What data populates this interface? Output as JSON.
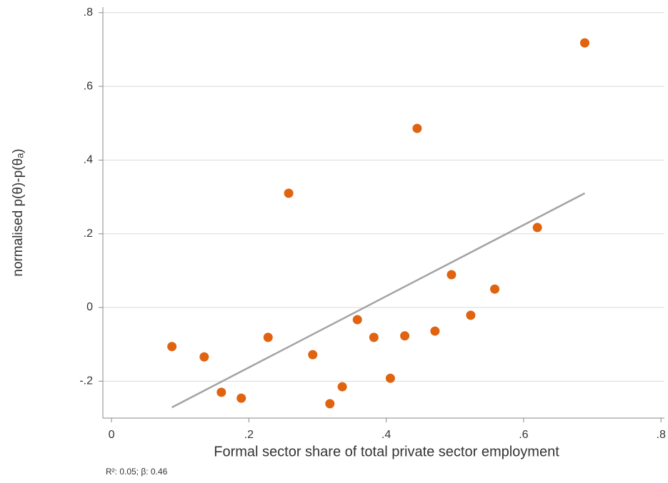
{
  "chart_data": {
    "type": "scatter",
    "xlabel": "Formal sector share of total private sector employment",
    "ylabel": "normalised p(θ)-p(θₐ)",
    "note": "R²: 0.05; β: 0.46",
    "x": [
      0.088,
      0.135,
      0.16,
      0.189,
      0.228,
      0.258,
      0.293,
      0.318,
      0.336,
      0.358,
      0.382,
      0.406,
      0.427,
      0.445,
      0.471,
      0.495,
      0.523,
      0.558,
      0.62,
      0.689
    ],
    "values": [
      -0.106,
      -0.134,
      -0.23,
      -0.246,
      -0.081,
      0.31,
      -0.128,
      -0.261,
      -0.215,
      -0.033,
      -0.081,
      -0.192,
      -0.077,
      0.486,
      -0.064,
      0.089,
      -0.021,
      0.05,
      0.217,
      0.718
    ],
    "color": "#e0630f",
    "fit": {
      "x": [
        0.088,
        0.689
      ],
      "values": [
        -0.271,
        0.31
      ],
      "color": "#a3a3a3"
    },
    "xlim": [
      -0.0125,
      0.805
    ],
    "ylim": [
      -0.3,
      0.815
    ],
    "xticks": [
      0,
      {
        "value": 0.2,
        "label": ".2"
      },
      {
        "value": 0.4,
        "label": ".4"
      },
      {
        "value": 0.6,
        "label": ".6"
      },
      {
        "value": 0.8,
        "label": ".8"
      }
    ],
    "yticks": [
      {
        "value": -0.2,
        "label": "-.2"
      },
      0,
      {
        "value": 0.2,
        "label": ".2"
      },
      {
        "value": 0.4,
        "label": ".4"
      },
      {
        "value": 0.6,
        "label": ".6"
      },
      {
        "value": 0.8,
        "label": ".8"
      }
    ],
    "grid": true
  }
}
